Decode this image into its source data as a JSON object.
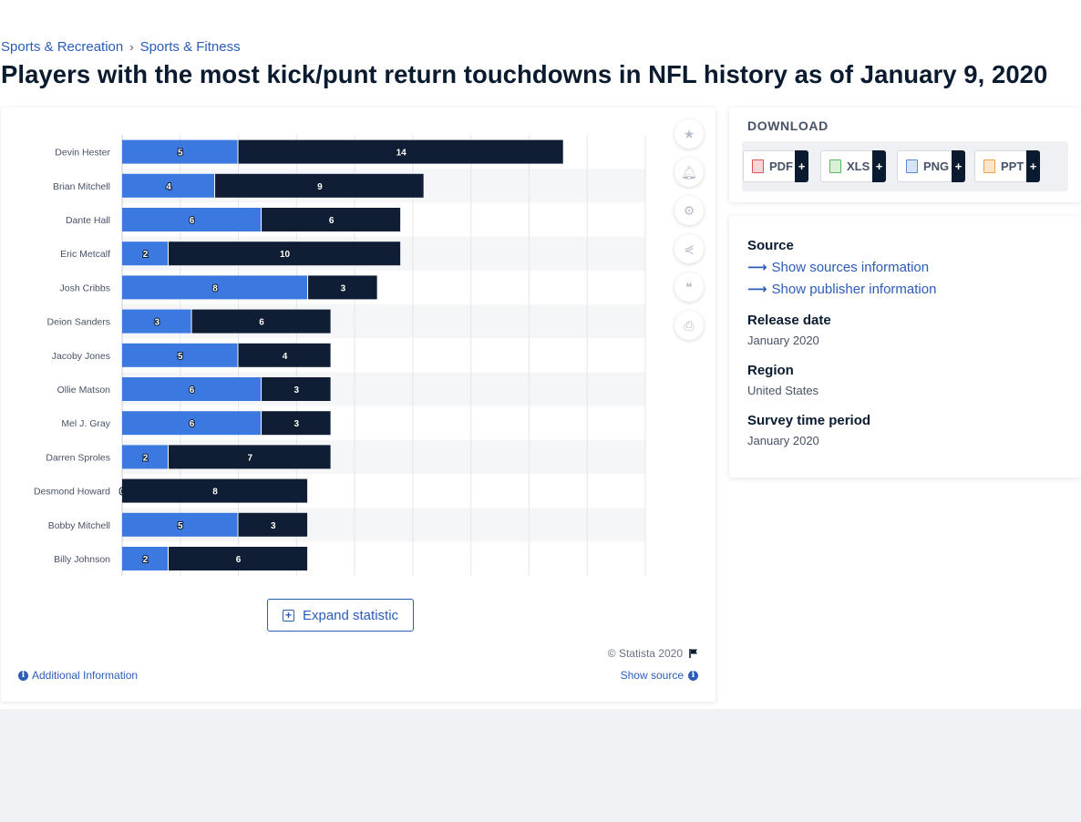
{
  "breadcrumb": {
    "items": [
      "Sports & Recreation",
      "Sports & Fitness"
    ],
    "separator": "›"
  },
  "page_title": "Players with the most kick/punt return touchdowns in NFL history as of January 9, 2020",
  "chart_data": {
    "type": "bar",
    "orientation": "horizontal",
    "stacked": true,
    "categories": [
      "Devin Hester",
      "Brian Mitchell",
      "Dante Hall",
      "Eric Metcalf",
      "Josh Cribbs",
      "Deion Sanders",
      "Jacoby Jones",
      "Ollie Matson",
      "Mel J. Gray",
      "Darren Sproles",
      "Desmond Howard",
      "Bobby Mitchell",
      "Billy Johnson"
    ],
    "series": [
      {
        "values": [
          5,
          4,
          6,
          2,
          8,
          3,
          5,
          6,
          6,
          2,
          0,
          5,
          2
        ],
        "color": "#3b78e0"
      },
      {
        "values": [
          14,
          9,
          6,
          10,
          3,
          6,
          4,
          3,
          3,
          7,
          8,
          3,
          6
        ],
        "color": "#0f1d35"
      }
    ],
    "xlim": [
      0,
      22.5
    ],
    "grid": true,
    "legend": "none",
    "title": "",
    "xlabel": "",
    "ylabel": ""
  },
  "chart_footer": {
    "expand_label": "Expand statistic",
    "copyright": "© Statista 2020",
    "additional_info": "Additional Information",
    "show_source": "Show source"
  },
  "side_tools": [
    "star-icon",
    "bell-icon",
    "gear-icon",
    "share-icon",
    "quote-icon",
    "print-icon"
  ],
  "download": {
    "title": "DOWNLOAD",
    "formats": [
      {
        "label": "PDF",
        "icon": "pdf-file-icon",
        "color": "#d9534f"
      },
      {
        "label": "XLS",
        "icon": "xls-file-icon",
        "color": "#5cb85c"
      },
      {
        "label": "PNG",
        "icon": "png-file-icon",
        "color": "#5b8bd6"
      },
      {
        "label": "PPT",
        "icon": "ppt-file-icon",
        "color": "#f0a040"
      }
    ],
    "plus": "+"
  },
  "info": {
    "source_label": "Source",
    "show_sources": "Show sources information",
    "show_publisher": "Show publisher information",
    "release_label": "Release date",
    "release_value": "January 2020",
    "region_label": "Region",
    "region_value": "United States",
    "period_label": "Survey time period",
    "period_value": "January 2020"
  },
  "colors": {
    "accent": "#2b5cb8",
    "bar_light": "#3b78e0",
    "bar_dark": "#0f1d35"
  }
}
